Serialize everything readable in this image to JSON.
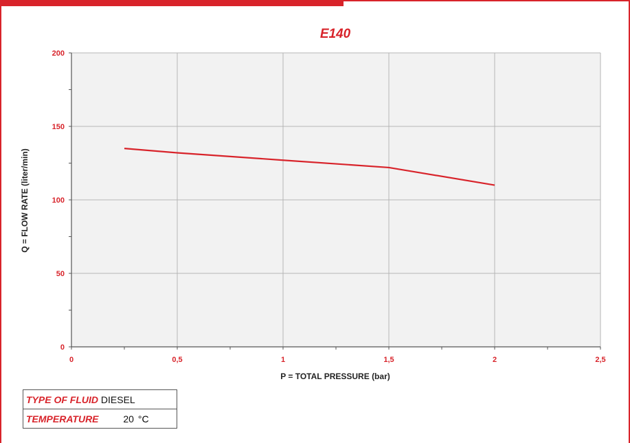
{
  "colors": {
    "accent": "#d8232a",
    "grid": "#b5b5b5",
    "plot_bg": "#f2f2f2",
    "axis": "#555555",
    "text": "#222222"
  },
  "chart_data": {
    "type": "line",
    "title": "E140",
    "xlabel": "P = TOTAL PRESSURE (bar)",
    "ylabel": "Q = FLOW RATE (liter/min)",
    "xlim": [
      0,
      2.5
    ],
    "ylim": [
      0,
      200
    ],
    "xticks": [
      0,
      0.5,
      1,
      1.5,
      2,
      2.5
    ],
    "xtick_labels": [
      "0",
      "0,5",
      "1",
      "1,5",
      "2",
      "2,5"
    ],
    "yticks": [
      0,
      50,
      100,
      150,
      200
    ],
    "ytick_labels": [
      "0",
      "50",
      "100",
      "150",
      "200"
    ],
    "grid": true,
    "series": [
      {
        "x": [
          0.25,
          0.5,
          1,
          1.5,
          2
        ],
        "y": [
          135,
          132,
          127,
          122,
          110
        ]
      }
    ]
  },
  "info": {
    "fluid_label": "TYPE OF FLUID",
    "fluid_value": "DIESEL",
    "temperature_label": "TEMPERATURE",
    "temperature_value": "20",
    "temperature_unit": "°C"
  }
}
